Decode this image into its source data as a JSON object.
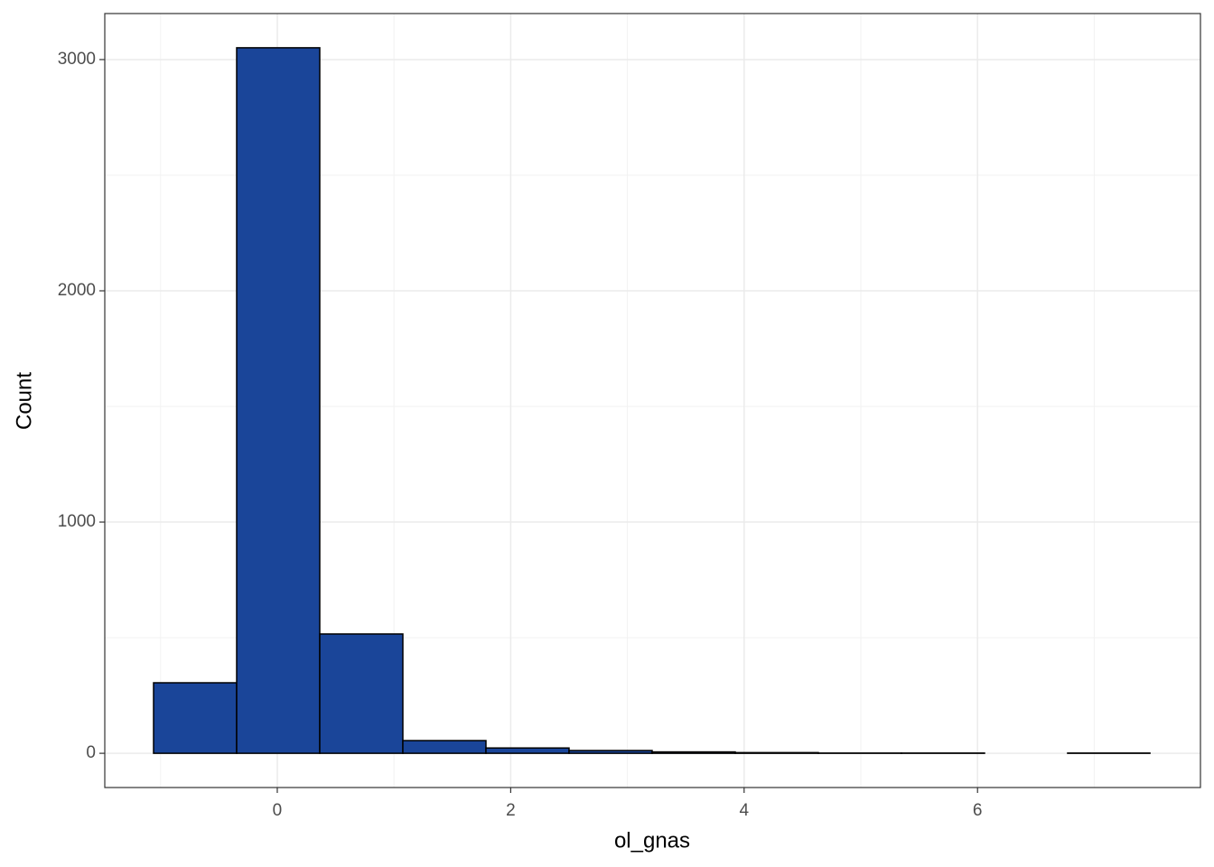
{
  "chart_data": {
    "type": "histogram",
    "x_label": "ol_gnas",
    "y_label": "Count",
    "bins": [
      -1.06,
      -0.348,
      0.364,
      1.076,
      1.788,
      2.5,
      3.212,
      3.924,
      4.636,
      5.348,
      6.06,
      6.772,
      7.477
    ],
    "values": [
      305,
      3051,
      516,
      55,
      23,
      12,
      6,
      3,
      1,
      1,
      0,
      1
    ],
    "color": "#1a4599",
    "edge_color": "#000000",
    "xlim": [
      -1.478,
      7.91
    ],
    "ylim": [
      -148,
      3199
    ],
    "xticks": [
      0,
      2,
      4,
      6
    ],
    "yticks": [
      0,
      1000,
      2000,
      3000
    ],
    "grid": true
  }
}
